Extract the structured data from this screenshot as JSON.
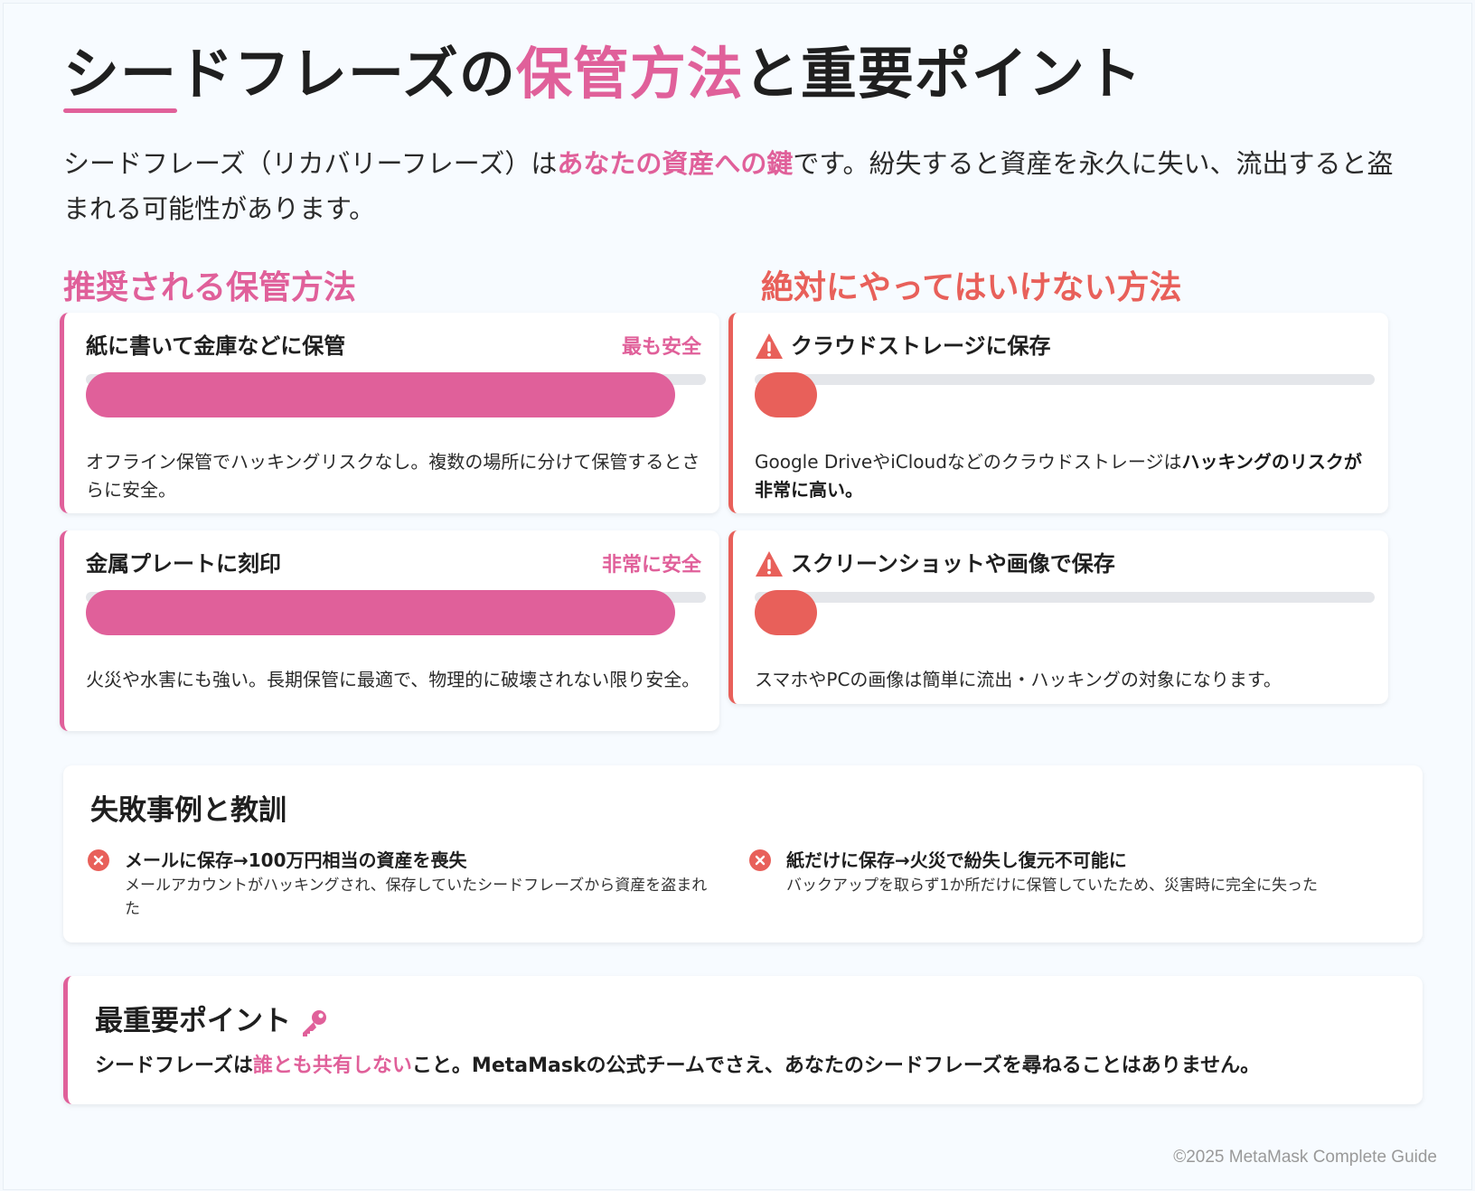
{
  "colors": {
    "accent_pink": "#e0609a",
    "danger_red": "#e8605a",
    "track_gray": "#e4e6ea"
  },
  "header": {
    "title_part1": "シードフレーズの",
    "title_highlight": "保管方法",
    "title_part2": "と重要ポイント"
  },
  "intro": {
    "part1": "シードフレーズ（リカバリーフレーズ）は",
    "highlight": "あなたの資産への鍵",
    "part2": "です。紛失すると資産を永久に失い、流出すると盗まれる可能性があります。"
  },
  "recommended": {
    "heading": "推奨される保管方法",
    "cards": [
      {
        "title": "紙に書いて金庫などに保管",
        "badge": "最も安全",
        "safety_level": 0.95,
        "desc": "オフライン保管でハッキングリスクなし。複数の場所に分けて保管するとさらに安全。"
      },
      {
        "title": "金属プレートに刻印",
        "badge": "非常に安全",
        "safety_level": 0.95,
        "desc": "火災や水害にも強い。長期保管に最適で、物理的に破壊されない限り安全。"
      }
    ]
  },
  "forbidden": {
    "heading": "絶対にやってはいけない方法",
    "cards": [
      {
        "icon": "warning-icon",
        "title": "クラウドストレージに保存",
        "safety_level": 0.1,
        "desc_part1": "Google DriveやiCloudなどのクラウドストレージは",
        "desc_bold": "ハッキングのリスクが非常に高い。"
      },
      {
        "icon": "warning-icon",
        "title": "スクリーンショットや画像で保存",
        "safety_level": 0.1,
        "desc_part1": "スマホやPCの画像は簡単に流出・ハッキングの対象になります。",
        "desc_bold": ""
      }
    ]
  },
  "failures": {
    "title": "失敗事例と教訓",
    "items": [
      {
        "icon": "x-circle-icon",
        "head": "メールに保存→100万円相当の資産を喪失",
        "desc": "メールアカウントがハッキングされ、保存していたシードフレーズから資産を盗まれた"
      },
      {
        "icon": "x-circle-icon",
        "head": "紙だけに保存→火災で紛失し復元不可能に",
        "desc": "バックアップを取らず1か所だけに保管していたため、災害時に完全に失った"
      }
    ]
  },
  "key_point": {
    "title": "最重要ポイント",
    "icon": "key-icon",
    "text_part1": "シードフレーズは",
    "text_highlight": "誰とも共有しない",
    "text_part2": "こと。MetaMaskの公式チームでさえ、あなたのシードフレーズを尋ねることはありません。"
  },
  "footer": "©2025 MetaMask Complete Guide"
}
